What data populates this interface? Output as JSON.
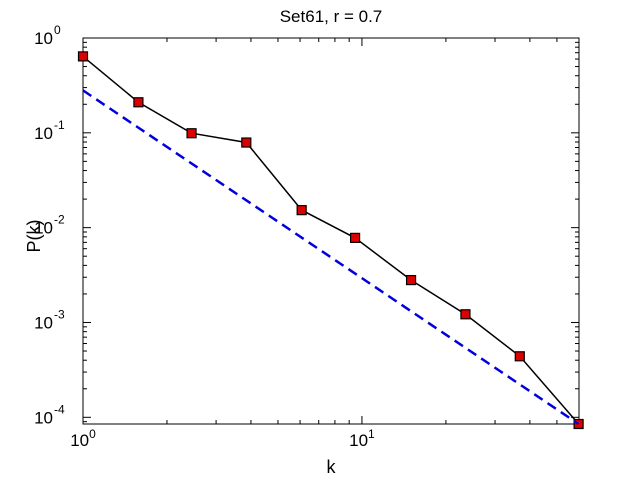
{
  "chart_data": {
    "type": "line",
    "title": "Set61, r = 0.7",
    "xlabel": "k",
    "ylabel": "P(k)",
    "xscale": "log",
    "yscale": "log",
    "xlim": [
      1,
      60
    ],
    "ylim": [
      8.5e-05,
      1
    ],
    "grid": false,
    "legend": "none",
    "x_ticks": [
      {
        "value": 1,
        "base": "10",
        "exp": "0"
      },
      {
        "value": 10,
        "base": "10",
        "exp": "1"
      }
    ],
    "y_ticks": [
      {
        "value": 1,
        "base": "10",
        "exp": "0"
      },
      {
        "value": 0.1,
        "base": "10",
        "exp": "-1"
      },
      {
        "value": 0.01,
        "base": "10",
        "exp": "-2"
      },
      {
        "value": 0.001,
        "base": "10",
        "exp": "-3"
      },
      {
        "value": 0.0001,
        "base": "10",
        "exp": "-4"
      }
    ],
    "series": [
      {
        "style": "solid-with-square-markers",
        "color": "#000000",
        "marker_color": "#dd0000",
        "x": [
          1,
          1.58,
          2.45,
          3.85,
          6.08,
          9.45,
          15.0,
          23.5,
          36.8,
          59.8
        ],
        "y": [
          0.64,
          0.21,
          0.099,
          0.079,
          0.0153,
          0.0078,
          0.0028,
          0.00122,
          0.00044,
          8.5e-05
        ]
      },
      {
        "style": "dashed",
        "color": "#0000dd",
        "x": [
          1,
          59.8
        ],
        "y": [
          0.28,
          8.5e-05
        ]
      }
    ]
  }
}
